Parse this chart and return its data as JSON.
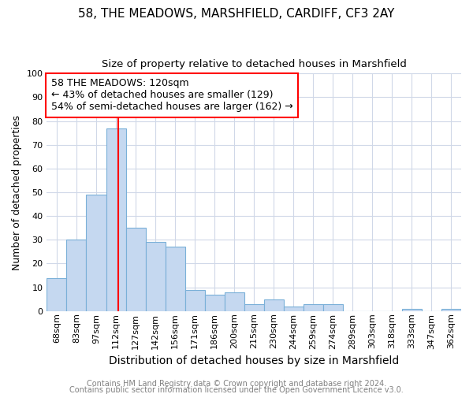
{
  "title1": "58, THE MEADOWS, MARSHFIELD, CARDIFF, CF3 2AY",
  "title2": "Size of property relative to detached houses in Marshfield",
  "xlabel": "Distribution of detached houses by size in Marshfield",
  "ylabel": "Number of detached properties",
  "categories": [
    "68sqm",
    "83sqm",
    "97sqm",
    "112sqm",
    "127sqm",
    "142sqm",
    "156sqm",
    "171sqm",
    "186sqm",
    "200sqm",
    "215sqm",
    "230sqm",
    "244sqm",
    "259sqm",
    "274sqm",
    "289sqm",
    "303sqm",
    "318sqm",
    "333sqm",
    "347sqm",
    "362sqm"
  ],
  "values": [
    14,
    30,
    49,
    77,
    35,
    29,
    27,
    9,
    7,
    8,
    3,
    5,
    2,
    3,
    3,
    0,
    0,
    0,
    1,
    0,
    1
  ],
  "bar_color": "#c5d8f0",
  "bar_edge_color": "#7ab0d8",
  "vline_x": 3,
  "vline_color": "red",
  "vline_linewidth": 1.5,
  "ylim": [
    0,
    100
  ],
  "annotation_text": "58 THE MEADOWS: 120sqm\n← 43% of detached houses are smaller (129)\n54% of semi-detached houses are larger (162) →",
  "annotation_box_color": "white",
  "annotation_box_edge_color": "red",
  "footer1": "Contains HM Land Registry data © Crown copyright and database right 2024.",
  "footer2": "Contains public sector information licensed under the Open Government Licence v3.0.",
  "bg_color": "white",
  "grid_color": "#d0d8e8",
  "title1_fontsize": 11,
  "title2_fontsize": 9.5,
  "xlabel_fontsize": 10,
  "ylabel_fontsize": 9,
  "tick_fontsize": 8,
  "footer_fontsize": 7,
  "annotation_fontsize": 9
}
